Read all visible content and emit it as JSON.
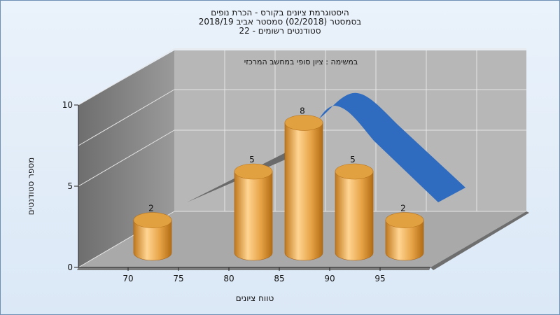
{
  "header": {
    "line1": "היסטוגרמת ציונים בקורס - הכרת נופים",
    "line2": "בסמסטר  (02/2018)  סמסטר אביב 2018/19",
    "line3": "סטודנטים רשומים - 22"
  },
  "chart_data": {
    "type": "bar",
    "subtitle": "במשימה : ציון סופי במחשב המרכזי",
    "xlabel": "טווח ציונים",
    "ylabel": "מספר סטודנטים",
    "categories": [
      "70",
      "80",
      "85",
      "90",
      "95"
    ],
    "values": [
      2,
      5,
      8,
      5,
      2
    ],
    "xticks": [
      "70",
      "75",
      "80",
      "85",
      "90",
      "95"
    ],
    "yticks": [
      0,
      5,
      10
    ],
    "ylim": [
      0,
      10
    ],
    "bar_color": "#e0a040",
    "trend_color": "#2f6bbf",
    "grid": true
  }
}
